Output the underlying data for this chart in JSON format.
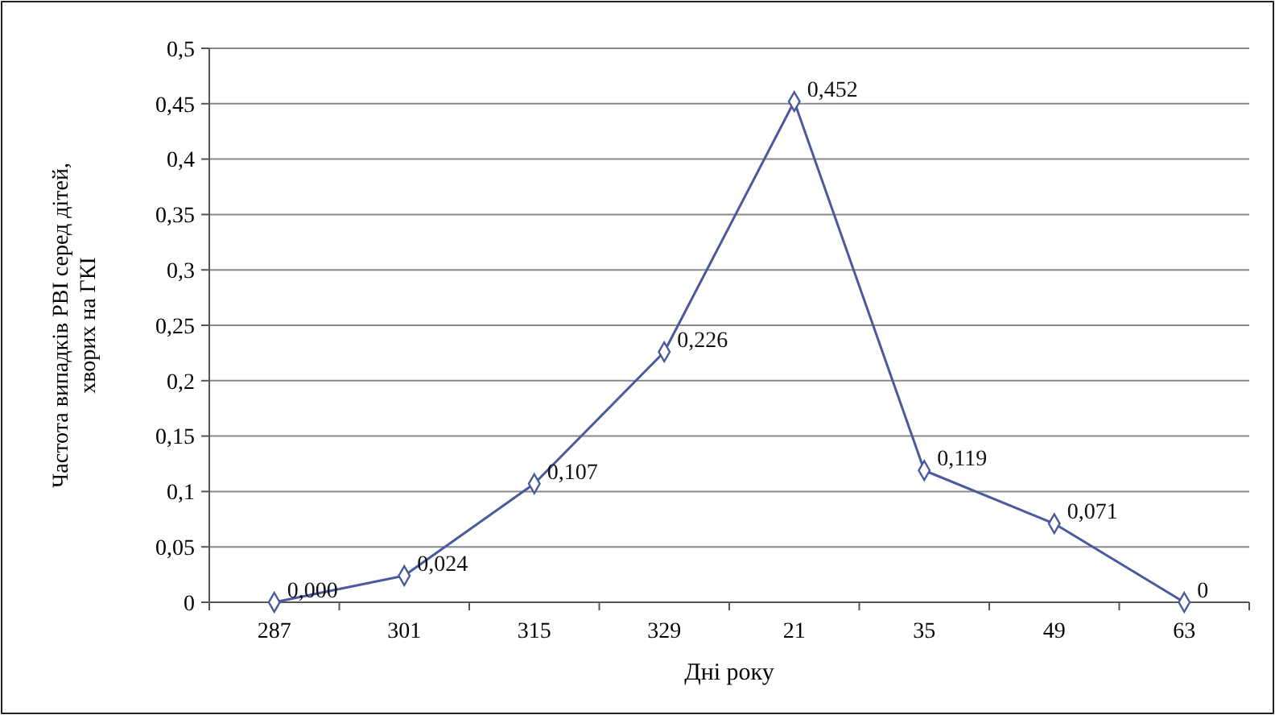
{
  "chart_data": {
    "type": "line",
    "xlabel": "Дні року",
    "ylabel": "Частота  випадків РВІ серед дітей, хворих на ГКІ",
    "categories": [
      "287",
      "301",
      "315",
      "329",
      "21",
      "35",
      "49",
      "63"
    ],
    "series": [
      {
        "color": "#4a5a9c",
        "values": [
          0,
          0.024,
          0.107,
          0.226,
          0.452,
          0.119,
          0.071,
          0
        ],
        "value_labels": [
          "0,000",
          "0,024",
          "0,107",
          "0,226",
          "0,452",
          "0,119",
          "0,071",
          "0"
        ]
      }
    ],
    "ylim": [
      0,
      0.5
    ],
    "yticks": [
      0,
      {
        "value": 0.05,
        "label": "0,05"
      },
      {
        "value": 0.1,
        "label": "0,1"
      },
      {
        "value": 0.15,
        "label": "0,15"
      },
      {
        "value": 0.2,
        "label": "0,2"
      },
      {
        "value": 0.25,
        "label": "0,25"
      },
      {
        "value": 0.3,
        "label": "0,3"
      },
      {
        "value": 0.35,
        "label": "0,35"
      },
      {
        "value": 0.4,
        "label": "0,4"
      },
      {
        "value": 0.45,
        "label": "0,45"
      },
      {
        "value": 0.5,
        "label": "0,5"
      }
    ],
    "grid": "y",
    "marker": "diamond",
    "line_style": "solid"
  }
}
